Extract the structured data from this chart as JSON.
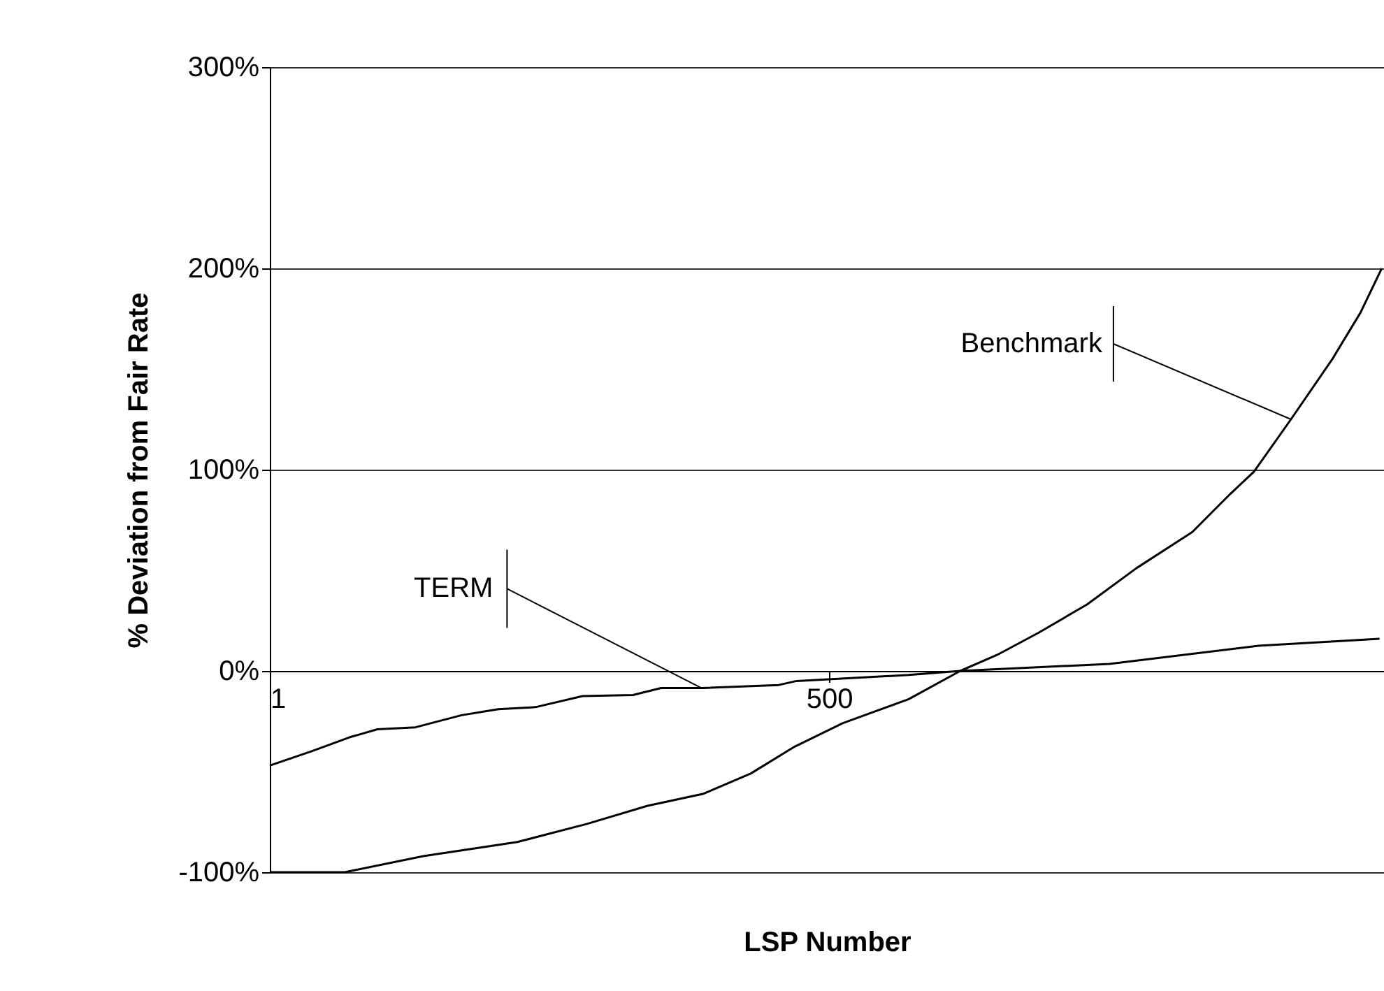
{
  "chart_data": {
    "type": "line",
    "xlabel": "LSP Number",
    "ylabel": "% Deviation from Fair Rate",
    "xlim": [
      1,
      995
    ],
    "xticks": [
      1,
      500
    ],
    "ylim": [
      -100,
      300
    ],
    "yticks": [
      {
        "value": -100,
        "label": "-100%"
      },
      {
        "value": 0,
        "label": "0%"
      },
      {
        "value": 100,
        "label": "100%"
      },
      {
        "value": 200,
        "label": "200%"
      },
      {
        "value": 300,
        "label": "300%"
      }
    ],
    "grid": "y",
    "marker": "none",
    "line_style": "solid",
    "series": [
      {
        "color": "#000000",
        "x": [
          1,
          38,
          72,
          97,
          131,
          172,
          205,
          238,
          280,
          325,
          350,
          388,
          455,
          471,
          571,
          617,
          750,
          883,
          991
        ],
        "values": [
          -47,
          -40,
          -33,
          -29,
          -28,
          -22,
          -19,
          -18,
          -12.5,
          -12,
          -8.5,
          -8.5,
          -7,
          -5,
          -2,
          0,
          3.5,
          12.5,
          16
        ]
      },
      {
        "color": "#000000",
        "x": [
          1,
          68,
          138,
          222,
          284,
          338,
          388,
          430,
          468,
          512,
          571,
          617,
          650,
          687,
          730,
          774,
          824,
          858,
          879,
          912,
          949,
          974,
          993
        ],
        "values": [
          -100,
          -100,
          -92,
          -85,
          -76,
          -67,
          -61,
          -51,
          -38,
          -26,
          -14,
          0,
          8,
          19,
          33,
          51,
          69,
          88,
          99,
          125,
          155,
          178,
          200
        ]
      }
    ],
    "annotations": [
      {
        "text": "TERM",
        "x": 386,
        "y": -8.5
      },
      {
        "text": "Benchmark",
        "x": 912,
        "y": 125
      }
    ]
  }
}
